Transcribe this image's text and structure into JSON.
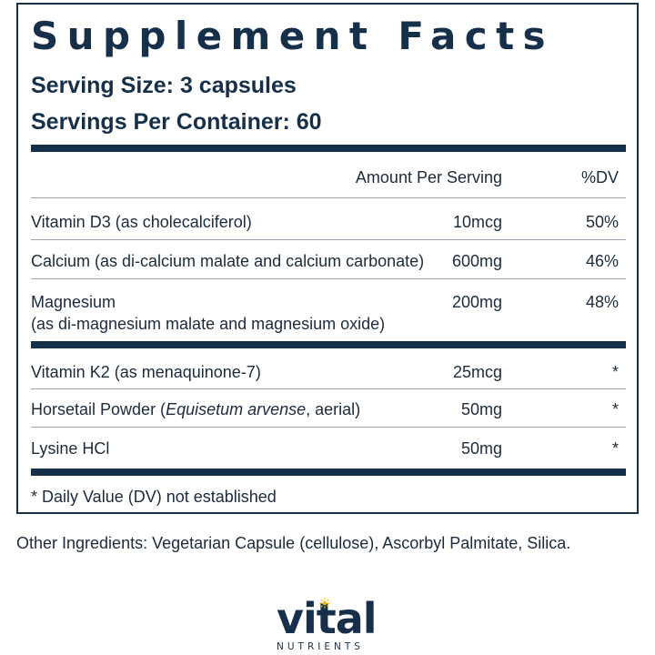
{
  "label": {
    "title": "Supplement Facts",
    "serving_size": "Serving Size: 3 capsules",
    "servings_per_container": "Servings Per Container: 60",
    "columns": {
      "amount": "Amount Per Serving",
      "dv": "%DV"
    },
    "rows": [
      {
        "name": "Vitamin D3 (as cholecalciferol)",
        "amount": "10mcg",
        "dv": "50%"
      },
      {
        "name": "Calcium (as di-calcium malate and calcium carbonate)",
        "amount": "600mg",
        "dv": "46%"
      },
      {
        "name": "Magnesium",
        "name_line2": "(as di-magnesium malate and magnesium oxide)",
        "amount": "200mg",
        "dv": "48%"
      },
      {
        "name": "Vitamin K2 (as menaquinone-7)",
        "amount": "25mcg",
        "dv": "*"
      },
      {
        "name_prefix": "Horsetail Powder (",
        "name_italic": "Equisetum arvense",
        "name_suffix": ", aerial)",
        "amount": "50mg",
        "dv": "*"
      },
      {
        "name": "Lysine HCl",
        "amount": "50mg",
        "dv": "*"
      }
    ],
    "footnote": "* Daily Value (DV) not established"
  },
  "other_ingredients": "Other Ingredients: Vegetarian Capsule (cellulose), Ascorbyl Palmitate, Silica.",
  "brand": {
    "name": "vital",
    "subtitle": "NUTRIENTS",
    "color": "#173049",
    "accent": "#f2b705"
  }
}
